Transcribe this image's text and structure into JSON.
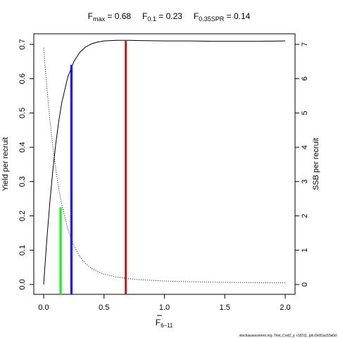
{
  "chart_data": {
    "type": "line",
    "title_parts": [
      {
        "main": "F",
        "sub": "max",
        "rest": " = 0.68"
      },
      {
        "main": "F",
        "sub": "0.1",
        "rest": " = 0.23"
      },
      {
        "main": "F",
        "sub": "0.35SPR",
        "rest": " = 0.14"
      }
    ],
    "xlabel": {
      "main": "F",
      "sub": "6–11"
    },
    "ylabel": "Yield per recruit",
    "y2label": "SSB per recruit",
    "xlim": [
      0,
      2.0
    ],
    "ylim": [
      0,
      0.7
    ],
    "y2lim": [
      0,
      7
    ],
    "xticks": [
      0,
      0.5,
      1.0,
      1.5,
      2.0
    ],
    "xtick_labels": [
      "0.0",
      "0.5",
      "1.0",
      "1.5",
      "2.0"
    ],
    "yticks": [
      0,
      0.1,
      0.2,
      0.3,
      0.4,
      0.5,
      0.6,
      0.7
    ],
    "ytick_labels": [
      "0.0",
      "0.1",
      "0.2",
      "0.3",
      "0.4",
      "0.5",
      "0.6",
      "0.7"
    ],
    "y2ticks": [
      0,
      1,
      2,
      3,
      4,
      5,
      6,
      7
    ],
    "y2tick_labels": [
      "0",
      "1",
      "2",
      "3",
      "4",
      "5",
      "6",
      "7"
    ],
    "series": [
      {
        "axis": "left",
        "style": "solid",
        "x": [
          0,
          0.025,
          0.05,
          0.075,
          0.1,
          0.125,
          0.15,
          0.2,
          0.25,
          0.3,
          0.35,
          0.4,
          0.45,
          0.5,
          0.6,
          0.7,
          0.8,
          1.0,
          1.2,
          1.4,
          1.6,
          1.8,
          2.0
        ],
        "y": [
          0,
          0.125,
          0.235,
          0.33,
          0.41,
          0.475,
          0.53,
          0.605,
          0.65,
          0.677,
          0.693,
          0.702,
          0.707,
          0.71,
          0.712,
          0.712,
          0.711,
          0.71,
          0.71,
          0.709,
          0.709,
          0.709,
          0.71
        ]
      },
      {
        "axis": "right",
        "style": "dotted",
        "x": [
          0,
          0.025,
          0.05,
          0.075,
          0.1,
          0.125,
          0.15,
          0.2,
          0.25,
          0.3,
          0.35,
          0.4,
          0.45,
          0.5,
          0.6,
          0.7,
          0.8,
          1.0,
          1.2,
          1.4,
          1.6,
          1.8,
          2.0
        ],
        "y": [
          6.9,
          5.8,
          4.85,
          4.05,
          3.38,
          2.8,
          2.33,
          1.62,
          1.13,
          0.81,
          0.6,
          0.46,
          0.37,
          0.3,
          0.22,
          0.17,
          0.14,
          0.1,
          0.08,
          0.07,
          0.06,
          0.05,
          0.05
        ]
      }
    ],
    "reference_lines": [
      {
        "x": 0.14,
        "y": 0.225,
        "color": "#00ff00"
      },
      {
        "x": 0.23,
        "y": 0.64,
        "color": "#0000ff"
      },
      {
        "x": 0.68,
        "y": 0.71,
        "color": "#ff0000"
      }
    ],
    "footer": "stockassessment.org, Test_Cod2_y, r18311, git:c9c81ac53a0d"
  }
}
